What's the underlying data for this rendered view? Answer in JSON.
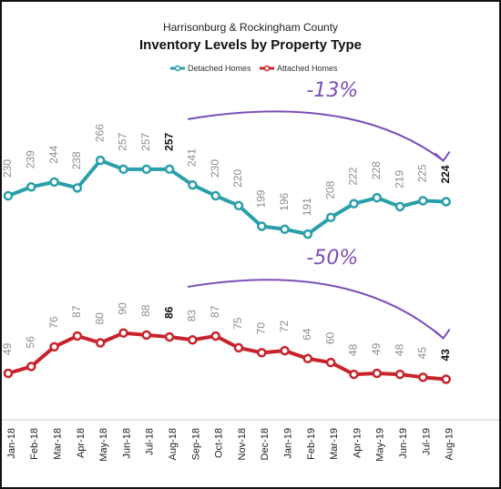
{
  "chart_data": {
    "type": "line",
    "subtitle": "Harrisonburg & Rockingham County",
    "title": "Inventory Levels by Property Type",
    "categories": [
      "Jan-18",
      "Feb-18",
      "Mar-18",
      "Apr-18",
      "May-18",
      "Jun-18",
      "Jul-18",
      "Aug-18",
      "Sep-18",
      "Oct-18",
      "Nov-18",
      "Dec-18",
      "Jan-19",
      "Feb-19",
      "Mar-19",
      "Apr-19",
      "May-19",
      "Jun-19",
      "Jul-19",
      "Aug-19"
    ],
    "series": [
      {
        "name": "Detached Homes",
        "color": "#2a9fab",
        "values": [
          230,
          239,
          244,
          238,
          266,
          257,
          257,
          257,
          241,
          230,
          220,
          199,
          196,
          191,
          208,
          222,
          228,
          219,
          225,
          224
        ],
        "highlight": [
          7,
          19
        ]
      },
      {
        "name": "Attached Homes",
        "color": "#c8232b",
        "values": [
          49,
          56,
          76,
          87,
          80,
          90,
          88,
          86,
          83,
          87,
          75,
          70,
          72,
          64,
          60,
          48,
          49,
          48,
          45,
          43
        ],
        "highlight": [
          7,
          19
        ]
      }
    ],
    "annotations": [
      {
        "text": "-13%",
        "series": 0,
        "from": 7,
        "to": 19,
        "color": "#7b4fb8"
      },
      {
        "text": "-50%",
        "series": 1,
        "from": 7,
        "to": 19,
        "color": "#7b4fb8"
      }
    ],
    "grid": false,
    "legend": "top-center"
  }
}
